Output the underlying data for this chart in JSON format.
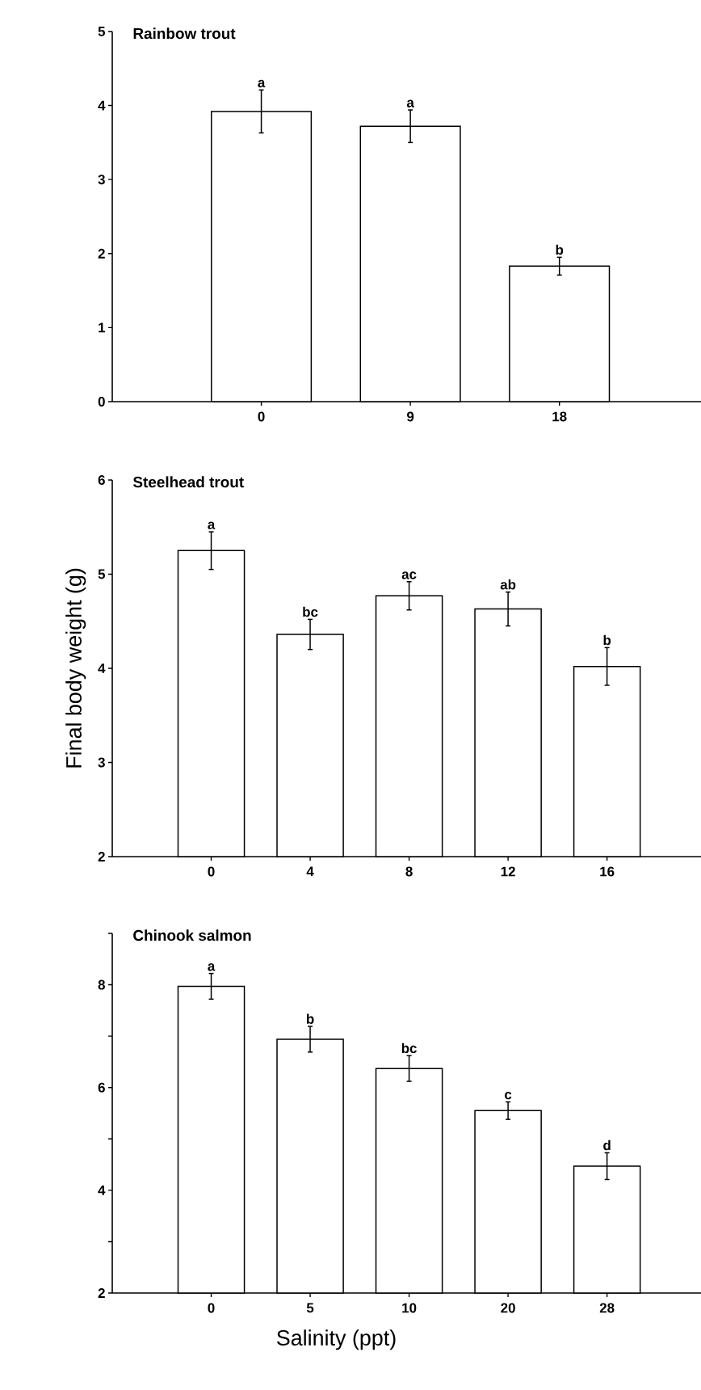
{
  "chart_data": [
    {
      "type": "bar",
      "title": "Rainbow trout",
      "categories": [
        "0",
        "9",
        "18"
      ],
      "values": [
        3.92,
        3.72,
        1.83
      ],
      "errors": [
        0.29,
        0.22,
        0.12
      ],
      "color": "#ffffff",
      "ylim": [
        0,
        5
      ],
      "yticks": [
        0,
        1,
        2,
        3,
        4,
        5
      ],
      "annotations": [
        {
          "text": "a",
          "x": "0",
          "y": 4.21
        },
        {
          "text": "a",
          "x": "9",
          "y": 3.94
        },
        {
          "text": "b",
          "x": "18",
          "y": 1.95
        }
      ]
    },
    {
      "type": "bar",
      "title": "Steelhead trout",
      "ylabel": "Final body weight (g)",
      "categories": [
        "0",
        "4",
        "8",
        "12",
        "16"
      ],
      "values": [
        5.25,
        4.36,
        4.77,
        4.63,
        4.02
      ],
      "errors": [
        0.2,
        0.16,
        0.15,
        0.18,
        0.2
      ],
      "color": "#ffffff",
      "ylim": [
        2,
        6
      ],
      "yticks": [
        2,
        3,
        4,
        5,
        6
      ],
      "annotations": [
        {
          "text": "a",
          "x": "0",
          "y": 5.45
        },
        {
          "text": "bc",
          "x": "4",
          "y": 4.52
        },
        {
          "text": "ac",
          "x": "8",
          "y": 4.92
        },
        {
          "text": "ab",
          "x": "12",
          "y": 4.81
        },
        {
          "text": "b",
          "x": "16",
          "y": 4.22
        }
      ]
    },
    {
      "type": "bar",
      "title": "Chinook salmon",
      "xlabel": "Salinity (ppt)",
      "categories": [
        "0",
        "5",
        "10",
        "20",
        "28"
      ],
      "values": [
        7.97,
        6.94,
        6.37,
        5.55,
        4.47
      ],
      "errors": [
        0.25,
        0.25,
        0.25,
        0.17,
        0.26
      ],
      "color": "#ffffff",
      "ylim": [
        2,
        9
      ],
      "yticks": [
        2,
        {
          "value": 3,
          "label": null
        },
        4,
        {
          "value": 5,
          "label": null
        },
        6,
        {
          "value": 7,
          "label": null
        },
        8,
        {
          "value": 9,
          "label": null
        }
      ],
      "annotations": [
        {
          "text": "a",
          "x": "0",
          "y": 8.22
        },
        {
          "text": "b",
          "x": "5",
          "y": 7.19
        },
        {
          "text": "bc",
          "x": "10",
          "y": 6.62
        },
        {
          "text": "c",
          "x": "20",
          "y": 5.72
        },
        {
          "text": "d",
          "x": "28",
          "y": 4.73
        }
      ]
    }
  ]
}
